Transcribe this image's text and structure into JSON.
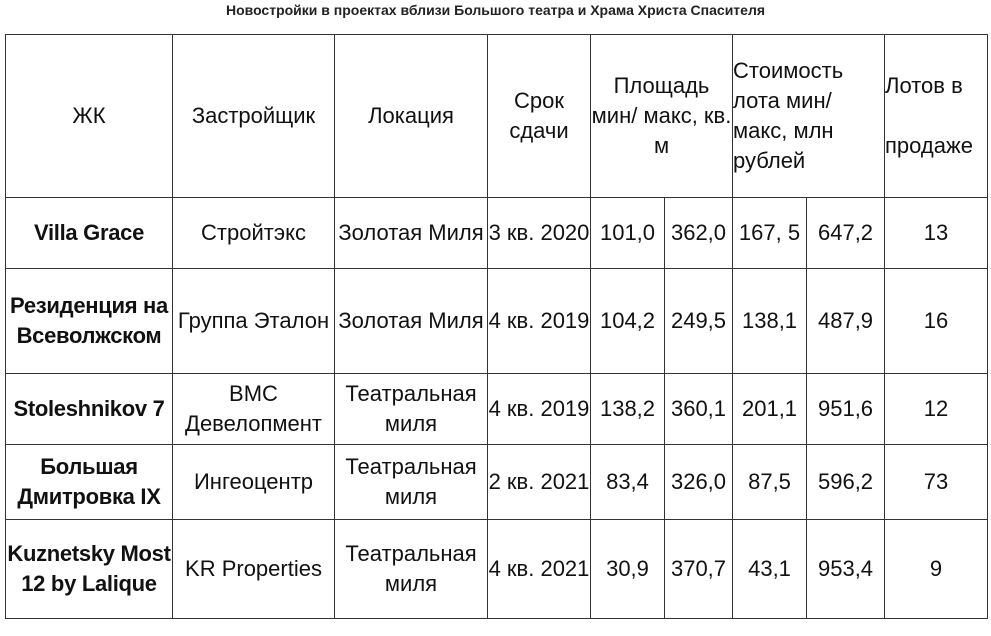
{
  "title": "Новостройки в проектах вблизи Большого театра и Храма Христа Спасителя",
  "headers": {
    "complex": "ЖК",
    "developer": "Застройщик",
    "location": "Локация",
    "deadline": "Срок сдачи",
    "area": "Площадь мин/ макс, кв. м",
    "cost": "Стоимость лота мин/макс, млн рублей",
    "lots_line1": "Лотов в",
    "lots_line2": "продаже"
  },
  "rows": [
    {
      "complex": "Villa Grace",
      "developer": "Стройтэкс",
      "location": "Золотая Миля",
      "deadline": "3 кв. 2020",
      "area_min": "101,0",
      "area_max": "362,0",
      "cost_min": "167, 5",
      "cost_max": "647,2",
      "lots": "13"
    },
    {
      "complex": "Резиденция на Всеволжском",
      "developer": "Группа Эталон",
      "location": "Золотая Миля",
      "deadline": "4 кв. 2019",
      "area_min": "104,2",
      "area_max": "249,5",
      "cost_min": "138,1",
      "cost_max": "487,9",
      "lots": "16"
    },
    {
      "complex": "Stoleshnikov 7",
      "developer": "BMC Девелопмент",
      "location": "Театральная миля",
      "deadline": "4 кв. 2019",
      "area_min": "138,2",
      "area_max": "360,1",
      "cost_min": "201,1",
      "cost_max": "951,6",
      "lots": "12"
    },
    {
      "complex": "Большая Дмитровка IX",
      "developer": "Ингеоцентр",
      "location": "Театральная миля",
      "deadline": "2 кв. 2021",
      "area_min": "83,4",
      "area_max": "326,0",
      "cost_min": "87,5",
      "cost_max": "596,2",
      "lots": "73"
    },
    {
      "complex": "Kuznetsky Most 12 by Lalique",
      "developer": "KR Properties",
      "location": "Театральная миля",
      "deadline": "4 кв. 2021",
      "area_min": "30,9",
      "area_max": "370,7",
      "cost_min": "43,1",
      "cost_max": "953,4",
      "lots": "9"
    }
  ]
}
